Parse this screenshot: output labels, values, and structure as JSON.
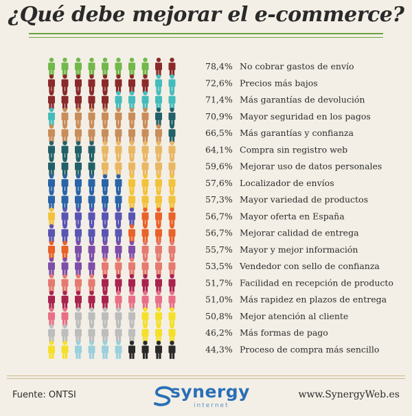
{
  "title": "¿Qué debe mejorar el e-commerce?",
  "footer": {
    "source": "Fuente: ONTSI",
    "website": "www.SynergyWeb.es",
    "logo_word": "synergy",
    "logo_sub": "internet"
  },
  "colors": {
    "green": "#72b84a",
    "maroon": "#8a2a2a",
    "teal": "#45bcbc",
    "tan": "#c98d5a",
    "darkteal": "#226069",
    "gold": "#e9b764",
    "navy": "#2a64a8",
    "yellow": "#f3c23c",
    "purple": "#5a55b3",
    "orange": "#e9622a",
    "violet": "#7e4ea8",
    "salmon": "#e57a70",
    "crimson": "#a9234f",
    "pink": "#e86f86",
    "grey": "#bdbdbd",
    "brightyellow": "#f4e02a",
    "lightblue": "#9bd0dd",
    "black": "#2a2a2a"
  },
  "chart_data": {
    "type": "pictograph",
    "title": "¿Qué debe mejorar el e-commerce?",
    "unit": "%",
    "rows": [
      {
        "label": "No cobrar gastos de envío",
        "value_text": "78,4%",
        "value": 78.4,
        "figures": [
          "green",
          "green",
          "green",
          "green",
          "green",
          "green",
          "green",
          "green",
          "maroon",
          "maroon"
        ]
      },
      {
        "label": "Precios más bajos",
        "value_text": "72,6%",
        "value": 72.6,
        "figures": [
          "maroon",
          "maroon",
          "maroon",
          "maroon",
          "maroon",
          "maroon",
          "maroon",
          "maroon",
          "teal",
          "teal"
        ]
      },
      {
        "label": "Más garantías de devolución",
        "value_text": "71,4%",
        "value": 71.4,
        "figures": [
          "maroon",
          "maroon",
          "maroon",
          "maroon",
          "maroon",
          "teal",
          "teal",
          "teal",
          "teal",
          "teal"
        ]
      },
      {
        "label": "Mayor seguridad en los pagos",
        "value_text": "70,9%",
        "value": 70.9,
        "figures": [
          "teal",
          "tan",
          "tan",
          "tan",
          "tan",
          "tan",
          "tan",
          "tan",
          "darkteal",
          "darkteal"
        ]
      },
      {
        "label": "Más garantías y confianza",
        "value_text": "66,5%",
        "value": 66.5,
        "figures": [
          "tan",
          "tan",
          "tan",
          "tan",
          "tan",
          "tan",
          "tan",
          "tan",
          "tan",
          "darkteal"
        ]
      },
      {
        "label": "Compra sin registro web",
        "value_text": "64,1%",
        "value": 64.1,
        "figures": [
          "darkteal",
          "darkteal",
          "darkteal",
          "darkteal",
          "gold",
          "gold",
          "gold",
          "gold",
          "gold",
          "gold"
        ]
      },
      {
        "label": "Mejorar uso de datos personales",
        "value_text": "59,6%",
        "value": 59.6,
        "figures": [
          "darkteal",
          "darkteal",
          "darkteal",
          "darkteal",
          "gold",
          "gold",
          "gold",
          "gold",
          "gold",
          "gold"
        ]
      },
      {
        "label": "Localizador de envíos",
        "value_text": "57,6%",
        "value": 57.6,
        "figures": [
          "navy",
          "navy",
          "navy",
          "navy",
          "navy",
          "navy",
          "yellow",
          "yellow",
          "yellow",
          "yellow"
        ]
      },
      {
        "label": "Mayor variedad de productos",
        "value_text": "57,3%",
        "value": 57.3,
        "figures": [
          "navy",
          "navy",
          "navy",
          "navy",
          "navy",
          "navy",
          "yellow",
          "yellow",
          "yellow",
          "yellow"
        ]
      },
      {
        "label": "Mayor oferta en España",
        "value_text": "56,7%",
        "value": 56.7,
        "figures": [
          "yellow",
          "purple",
          "purple",
          "purple",
          "purple",
          "purple",
          "purple",
          "orange",
          "orange",
          "orange"
        ]
      },
      {
        "label": "Mejorar calidad de entrega",
        "value_text": "56,7%",
        "value": 56.7,
        "figures": [
          "purple",
          "purple",
          "purple",
          "purple",
          "purple",
          "purple",
          "orange",
          "orange",
          "orange",
          "orange"
        ]
      },
      {
        "label": "Mayor y mejor información",
        "value_text": "55,7%",
        "value": 55.7,
        "figures": [
          "orange",
          "orange",
          "violet",
          "violet",
          "violet",
          "violet",
          "violet",
          "salmon",
          "salmon",
          "salmon"
        ]
      },
      {
        "label": "Vendedor con sello de confianza",
        "value_text": "53,5%",
        "value": 53.5,
        "figures": [
          "violet",
          "violet",
          "violet",
          "violet",
          "salmon",
          "salmon",
          "salmon",
          "salmon",
          "salmon",
          "salmon"
        ]
      },
      {
        "label": "Facilidad en recepción de producto",
        "value_text": "51,7%",
        "value": 51.7,
        "figures": [
          "salmon",
          "salmon",
          "salmon",
          "salmon",
          "crimson",
          "crimson",
          "crimson",
          "crimson",
          "crimson",
          "crimson"
        ]
      },
      {
        "label": "Más rapidez en plazos de entrega",
        "value_text": "51,0%",
        "value": 51.0,
        "figures": [
          "crimson",
          "crimson",
          "crimson",
          "crimson",
          "crimson",
          "pink",
          "pink",
          "pink",
          "pink",
          "pink"
        ]
      },
      {
        "label": "Mejor atención al cliente",
        "value_text": "50,8%",
        "value": 50.8,
        "figures": [
          "pink",
          "pink",
          "grey",
          "grey",
          "grey",
          "grey",
          "grey",
          "brightyellow",
          "brightyellow",
          "brightyellow"
        ]
      },
      {
        "label": "Más formas de pago",
        "value_text": "46,2%",
        "value": 46.2,
        "figures": [
          "grey",
          "grey",
          "grey",
          "grey",
          "grey",
          "grey",
          "grey",
          "brightyellow",
          "brightyellow",
          "brightyellow"
        ]
      },
      {
        "label": "Proceso de compra más sencillo",
        "value_text": "44,3%",
        "value": 44.3,
        "figures": [
          "brightyellow",
          "brightyellow",
          "lightblue",
          "lightblue",
          "lightblue",
          "lightblue",
          "black",
          "black",
          "black",
          "black"
        ]
      }
    ]
  }
}
